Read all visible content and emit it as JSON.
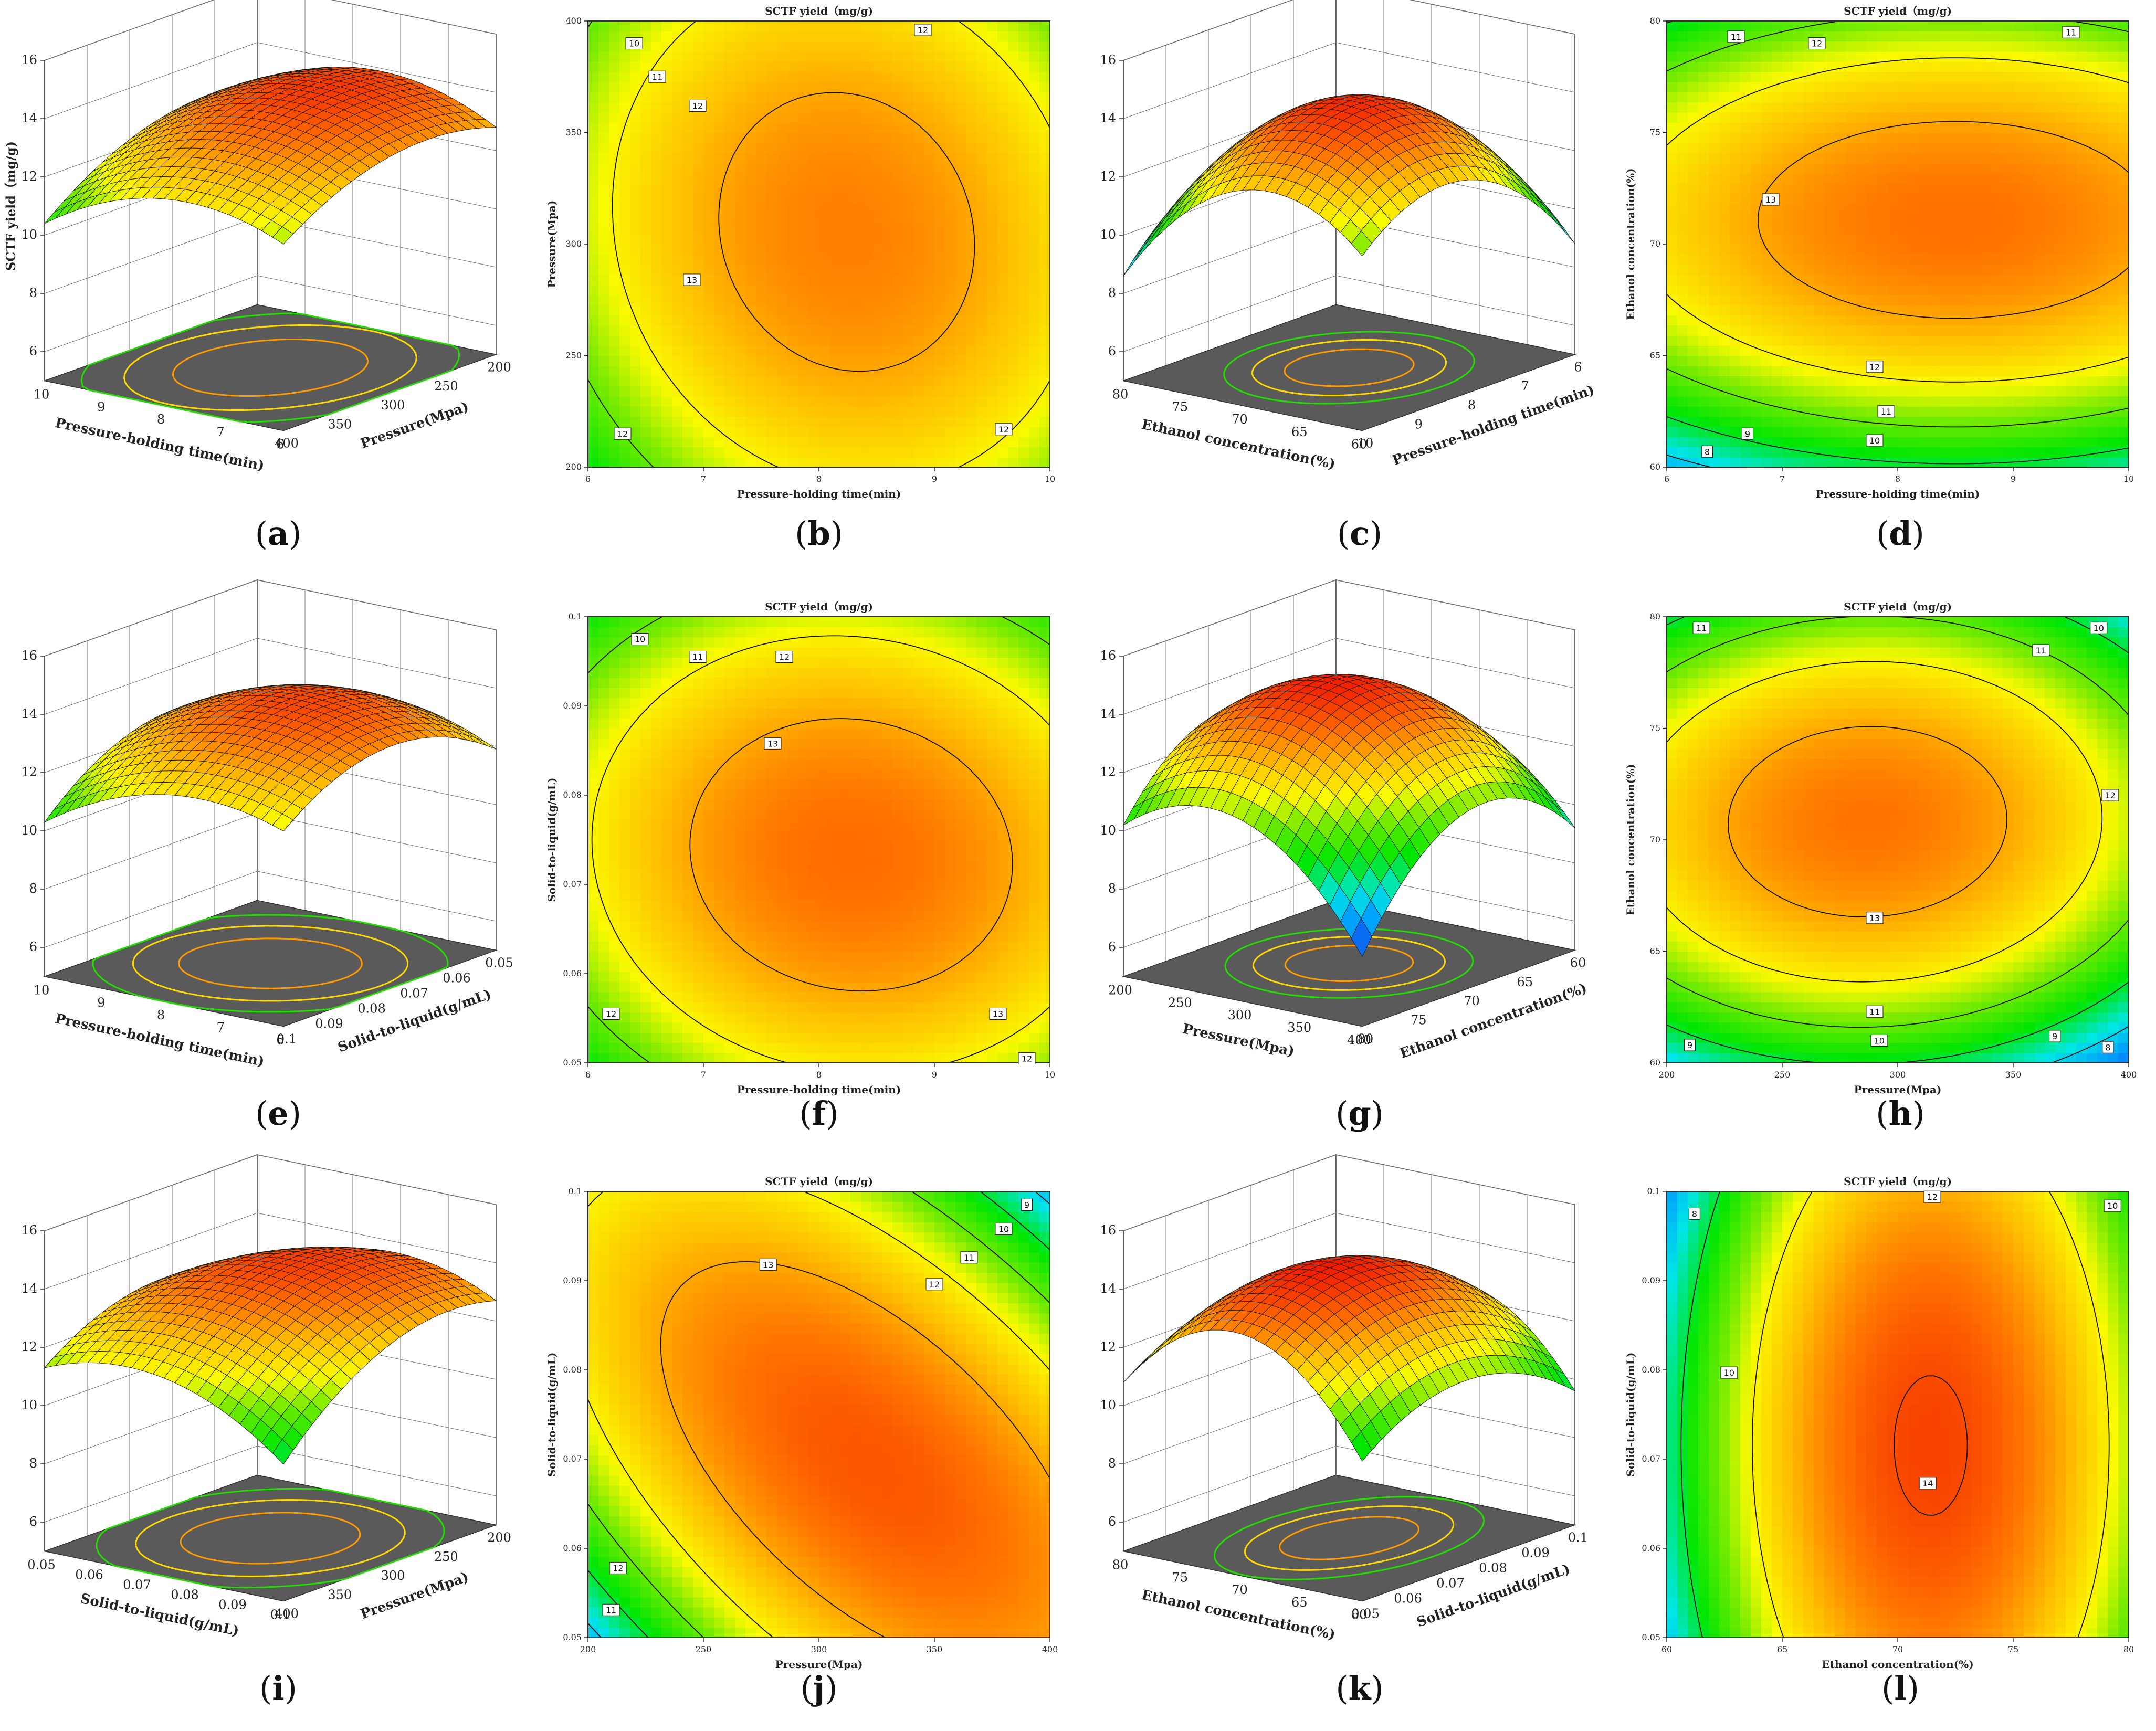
{
  "chart_data": [
    {
      "id": "a",
      "label_letter": "a",
      "type": "surface",
      "zlabel": "SCTF yield（mg/g)",
      "zticks": [
        6,
        8,
        10,
        12,
        14,
        16
      ],
      "x": {
        "label": "Pressure-holding time(min)",
        "ticks": [
          10,
          9,
          8,
          7,
          6
        ]
      },
      "y": {
        "label": "Pressure(Mpa)",
        "ticks": [
          200,
          250,
          300,
          350,
          400
        ]
      }
    },
    {
      "id": "b",
      "label_letter": "b",
      "type": "contour",
      "title": "SCTF yield（mg/g)",
      "xlabel": "Pressure-holding time(min)",
      "ylabel": "Pressure(Mpa)",
      "xlim": [
        6,
        10
      ],
      "ylim": [
        200,
        400
      ],
      "xticks": [
        6,
        7,
        8,
        9,
        10
      ],
      "yticks": [
        200,
        250,
        300,
        350,
        400
      ],
      "levels": [
        10,
        11,
        12,
        13
      ],
      "contour_labels": [
        {
          "x": 6.4,
          "y": 390,
          "v": "10"
        },
        {
          "x": 6.6,
          "y": 375,
          "v": "11"
        },
        {
          "x": 6.95,
          "y": 362,
          "v": "12"
        },
        {
          "x": 8.9,
          "y": 396,
          "v": "12"
        },
        {
          "x": 6.9,
          "y": 284,
          "v": "13"
        },
        {
          "x": 6.3,
          "y": 215,
          "v": "12"
        },
        {
          "x": 9.6,
          "y": 217,
          "v": "12"
        }
      ]
    },
    {
      "id": "c",
      "label_letter": "c",
      "type": "surface",
      "zlabel": "",
      "zticks": [
        6,
        8,
        10,
        12,
        14,
        16
      ],
      "x": {
        "label": "Ethanol concentration(%)",
        "ticks": [
          80,
          75,
          70,
          65,
          60
        ]
      },
      "y": {
        "label": "Pressure-holding time(min)",
        "ticks": [
          6,
          7,
          8,
          9,
          10
        ]
      }
    },
    {
      "id": "d",
      "label_letter": "d",
      "type": "contour",
      "title": "SCTF yield（mg/g)",
      "xlabel": "Pressure-holding time(min)",
      "ylabel": "Ethanol concentration(%)",
      "xlim": [
        6,
        10
      ],
      "ylim": [
        60,
        80
      ],
      "xticks": [
        6,
        7,
        8,
        9,
        10
      ],
      "yticks": [
        60,
        65,
        70,
        75,
        80
      ],
      "levels": [
        8,
        9,
        10,
        11,
        12,
        13
      ],
      "contour_labels": [
        {
          "x": 6.6,
          "y": 79.3,
          "v": "11"
        },
        {
          "x": 7.3,
          "y": 79,
          "v": "12"
        },
        {
          "x": 9.5,
          "y": 79.5,
          "v": "11"
        },
        {
          "x": 6.9,
          "y": 72,
          "v": "13"
        },
        {
          "x": 7.8,
          "y": 64.5,
          "v": "12"
        },
        {
          "x": 7.9,
          "y": 62.5,
          "v": "11"
        },
        {
          "x": 7.8,
          "y": 61.2,
          "v": "10"
        },
        {
          "x": 6.7,
          "y": 61.5,
          "v": "9"
        },
        {
          "x": 6.35,
          "y": 60.7,
          "v": "8"
        }
      ]
    },
    {
      "id": "e",
      "label_letter": "e",
      "type": "surface",
      "zlabel": "",
      "zticks": [
        6,
        8,
        10,
        12,
        14,
        16
      ],
      "x": {
        "label": "Pressure-holding time(min)",
        "ticks": [
          10,
          9,
          8,
          7,
          6
        ]
      },
      "y": {
        "label": "Solid-to-liquid(g/mL)",
        "ticks": [
          0.05,
          0.06,
          0.07,
          0.08,
          0.09,
          0.1
        ]
      }
    },
    {
      "id": "f",
      "label_letter": "f",
      "type": "contour",
      "title": "SCTF yield（mg/g)",
      "xlabel": "Pressure-holding time(min)",
      "ylabel": "Solid-to-liquid(g/mL)",
      "xlim": [
        6,
        10
      ],
      "ylim": [
        0.05,
        0.1
      ],
      "xticks": [
        6,
        7,
        8,
        9,
        10
      ],
      "yticks": [
        0.05,
        0.06,
        0.07,
        0.08,
        0.09,
        0.1
      ],
      "levels": [
        10,
        11,
        12,
        13
      ],
      "contour_labels": [
        {
          "x": 6.45,
          "y": 0.0975,
          "v": "10"
        },
        {
          "x": 6.95,
          "y": 0.0955,
          "v": "11"
        },
        {
          "x": 7.7,
          "y": 0.0955,
          "v": "12"
        },
        {
          "x": 7.6,
          "y": 0.0858,
          "v": "13"
        },
        {
          "x": 6.2,
          "y": 0.0555,
          "v": "12"
        },
        {
          "x": 9.55,
          "y": 0.0555,
          "v": "13"
        },
        {
          "x": 9.8,
          "y": 0.0505,
          "v": "12"
        }
      ]
    },
    {
      "id": "g",
      "label_letter": "g",
      "type": "surface",
      "zlabel": "",
      "zticks": [
        6,
        8,
        10,
        12,
        14,
        16
      ],
      "x": {
        "label": "Pressure(Mpa)",
        "ticks": [
          200,
          250,
          300,
          350,
          400
        ]
      },
      "y": {
        "label": "Ethanol concentration(%)",
        "ticks": [
          60,
          65,
          70,
          75,
          80
        ]
      }
    },
    {
      "id": "h",
      "label_letter": "h",
      "type": "contour",
      "title": "SCTF yield（mg/g)",
      "xlabel": "Pressure(Mpa)",
      "ylabel": "Ethanol concentration(%)",
      "xlim": [
        200,
        400
      ],
      "ylim": [
        60,
        80
      ],
      "xticks": [
        200,
        250,
        300,
        350,
        400
      ],
      "yticks": [
        60,
        65,
        70,
        75,
        80
      ],
      "levels": [
        8,
        9,
        10,
        11,
        12,
        13
      ],
      "contour_labels": [
        {
          "x": 215,
          "y": 79.5,
          "v": "11"
        },
        {
          "x": 362,
          "y": 78.5,
          "v": "11"
        },
        {
          "x": 387,
          "y": 79.5,
          "v": "10"
        },
        {
          "x": 392,
          "y": 72,
          "v": "12"
        },
        {
          "x": 290,
          "y": 66.5,
          "v": "13"
        },
        {
          "x": 290,
          "y": 62.3,
          "v": "11"
        },
        {
          "x": 292,
          "y": 61,
          "v": "10"
        },
        {
          "x": 210,
          "y": 60.8,
          "v": "9"
        },
        {
          "x": 368,
          "y": 61.2,
          "v": "9"
        },
        {
          "x": 391,
          "y": 60.7,
          "v": "8"
        }
      ]
    },
    {
      "id": "i",
      "label_letter": "i",
      "type": "surface",
      "zlabel": "",
      "zticks": [
        6,
        8,
        10,
        12,
        14,
        16
      ],
      "x": {
        "label": "Solid-to-liquid(g/mL)",
        "ticks": [
          0.05,
          0.06,
          0.07,
          0.08,
          0.09,
          0.1
        ]
      },
      "y": {
        "label": "Pressure(Mpa)",
        "ticks": [
          200,
          250,
          300,
          350,
          400
        ]
      }
    },
    {
      "id": "j",
      "label_letter": "j",
      "type": "contour",
      "title": "SCTF yield（mg/g)",
      "xlabel": "Pressure(Mpa)",
      "ylabel": "Solid-to-liquid(g/mL)",
      "xlim": [
        200,
        400
      ],
      "ylim": [
        0.05,
        0.1
      ],
      "xticks": [
        200,
        250,
        300,
        350,
        400
      ],
      "yticks": [
        0.05,
        0.06,
        0.07,
        0.08,
        0.09,
        0.1
      ],
      "levels": [
        9,
        10,
        11,
        12,
        13
      ],
      "contour_labels": [
        {
          "x": 390,
          "y": 0.0985,
          "v": "9"
        },
        {
          "x": 380,
          "y": 0.0958,
          "v": "10"
        },
        {
          "x": 365,
          "y": 0.0926,
          "v": "11"
        },
        {
          "x": 350,
          "y": 0.0896,
          "v": "12"
        },
        {
          "x": 278,
          "y": 0.0918,
          "v": "13"
        },
        {
          "x": 213,
          "y": 0.0578,
          "v": "12"
        },
        {
          "x": 210,
          "y": 0.0531,
          "v": "11"
        }
      ]
    },
    {
      "id": "k",
      "label_letter": "k",
      "type": "surface",
      "zlabel": "",
      "zticks": [
        6,
        8,
        10,
        12,
        14,
        16
      ],
      "x": {
        "label": "Ethanol concentration(%)",
        "ticks": [
          80,
          75,
          70,
          65,
          60
        ]
      },
      "y": {
        "label": "Solid-to-liquid(g/mL)",
        "ticks": [
          0.1,
          0.09,
          0.08,
          0.07,
          0.06,
          0.05
        ]
      }
    },
    {
      "id": "l",
      "label_letter": "l",
      "type": "contour",
      "title": "SCTF yield（mg/g)",
      "xlabel": "Ethanol concentration(%)",
      "ylabel": "Solid-to-liquid(g/mL)",
      "xlim": [
        60,
        80
      ],
      "ylim": [
        0.05,
        0.1
      ],
      "xticks": [
        60,
        65,
        70,
        75,
        80
      ],
      "yticks": [
        0.05,
        0.06,
        0.07,
        0.08,
        0.09,
        0.1
      ],
      "levels": [
        8,
        10,
        12,
        14
      ],
      "contour_labels": [
        {
          "x": 61.2,
          "y": 0.0975,
          "v": "8"
        },
        {
          "x": 62.7,
          "y": 0.0797,
          "v": "10"
        },
        {
          "x": 71.5,
          "y": 0.0994,
          "v": "12"
        },
        {
          "x": 79.3,
          "y": 0.0984,
          "v": "10"
        },
        {
          "x": 71.3,
          "y": 0.0673,
          "v": "14"
        }
      ]
    }
  ]
}
